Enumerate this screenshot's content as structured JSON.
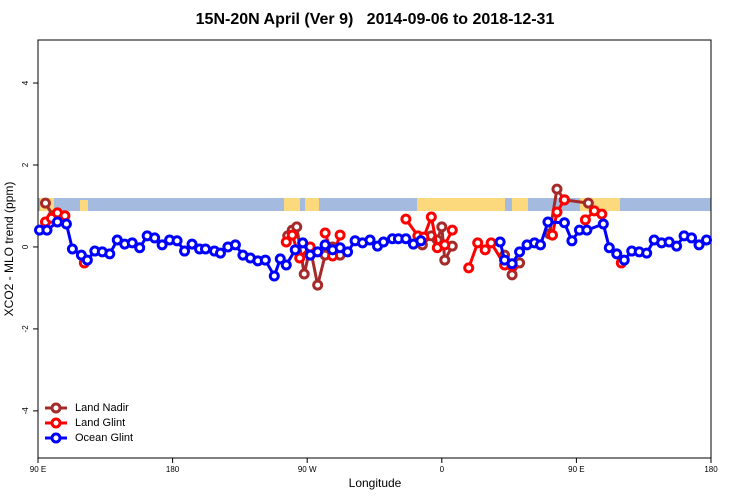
{
  "chart_data": {
    "type": "line",
    "title": "15N-20N April (Ver 9)   2014-09-06 to 2018-12-31",
    "xlabel": "Longitude",
    "ylabel": "XCO2 - MLO trend (ppm)",
    "xlim": [
      90,
      540
    ],
    "xticks": [
      {
        "value": 90,
        "label": "90 E"
      },
      180,
      {
        "value": 270,
        "label": "90 W"
      },
      {
        "value": 360,
        "label": "0"
      },
      {
        "value": 450,
        "label": "90 E"
      },
      {
        "value": 540,
        "label": "180"
      }
    ],
    "ylim": [
      -5.15,
      5.05
    ],
    "yticks": [
      -4,
      -2,
      0,
      2,
      4
    ],
    "legend": "bottom-left",
    "series": [
      {
        "name": "Land Nadir",
        "color": "#a52a2a",
        "x": [
          95,
          100,
          null,
          257,
          260,
          263,
          268,
          272,
          277,
          282,
          287,
          292,
          null,
          347,
          353,
          357,
          360,
          362,
          367,
          null,
          402,
          407,
          412,
          null,
          432,
          437,
          442,
          458
        ],
        "values": [
          1.07,
          0.76,
          null,
          0.27,
          0.41,
          0.49,
          -0.66,
          -0.02,
          -0.93,
          -0.2,
          0,
          -0.2,
          null,
          0.05,
          0.27,
          0.17,
          0.49,
          -0.32,
          0.02,
          null,
          -0.2,
          -0.68,
          -0.39,
          null,
          0.32,
          1.41,
          1.15,
          1.07
        ]
      },
      {
        "name": "Land Glint",
        "color": "#ff0000",
        "x": [
          95,
          99,
          103,
          108,
          null,
          121,
          null,
          256,
          260,
          265,
          272,
          null,
          282,
          287,
          292,
          null,
          336,
          344,
          348,
          353,
          357,
          362,
          367,
          null,
          378,
          384,
          389,
          393,
          402,
          407,
          null,
          434,
          437,
          442,
          null,
          456,
          462,
          467,
          null,
          480
        ],
        "values": [
          0.61,
          0.7,
          0.83,
          0.76,
          null,
          -0.39,
          null,
          0.12,
          0.29,
          -0.27,
          0,
          null,
          0.34,
          -0.22,
          0.29,
          null,
          0.68,
          0.27,
          0.24,
          0.73,
          -0.02,
          0.05,
          0.41,
          null,
          -0.51,
          0.1,
          -0.07,
          0.1,
          -0.44,
          -0.46,
          null,
          0.29,
          0.85,
          1.15,
          null,
          0.66,
          0.88,
          0.8,
          null,
          -0.39
        ]
      },
      {
        "name": "Ocean Glint",
        "color": "#0000ff",
        "x": [
          91,
          96,
          103,
          109,
          113,
          119,
          123,
          128,
          133,
          138,
          143,
          148,
          153,
          158,
          163,
          168,
          173,
          178,
          183,
          188,
          193,
          198,
          202,
          208,
          212,
          217,
          222,
          227,
          232,
          237,
          242,
          248,
          252,
          256,
          262,
          267,
          272,
          277,
          282,
          287,
          292,
          297,
          302,
          307,
          312,
          317,
          321,
          327,
          331,
          336,
          341,
          346,
          null,
          399,
          402,
          407,
          412,
          417,
          422,
          426,
          431,
          442,
          447,
          452,
          457,
          468,
          472,
          477,
          482,
          487,
          492,
          497,
          502,
          507,
          512,
          517,
          522,
          527,
          532,
          537
        ],
        "values": [
          0.41,
          0.41,
          0.61,
          0.56,
          -0.05,
          -0.2,
          -0.32,
          -0.1,
          -0.12,
          -0.17,
          0.17,
          0.07,
          0.1,
          -0.02,
          0.27,
          0.22,
          0.05,
          0.17,
          0.15,
          -0.1,
          0.07,
          -0.05,
          -0.05,
          -0.1,
          -0.15,
          0,
          0.05,
          -0.2,
          -0.27,
          -0.34,
          -0.32,
          -0.71,
          -0.29,
          -0.44,
          -0.07,
          0.1,
          -0.2,
          -0.12,
          0.05,
          -0.07,
          -0.02,
          -0.12,
          0.15,
          0.1,
          0.17,
          0.02,
          0.12,
          0.2,
          0.2,
          0.2,
          0.07,
          0.15,
          null,
          0.12,
          -0.32,
          -0.41,
          -0.12,
          0.05,
          0.1,
          0.05,
          0.61,
          0.59,
          0.15,
          0.41,
          0.41,
          0.56,
          -0.02,
          -0.17,
          -0.32,
          -0.1,
          -0.12,
          -0.15,
          0.17,
          0.1,
          0.12,
          0.02,
          0.27,
          0.22,
          0.05,
          0.17
        ]
      }
    ]
  }
}
